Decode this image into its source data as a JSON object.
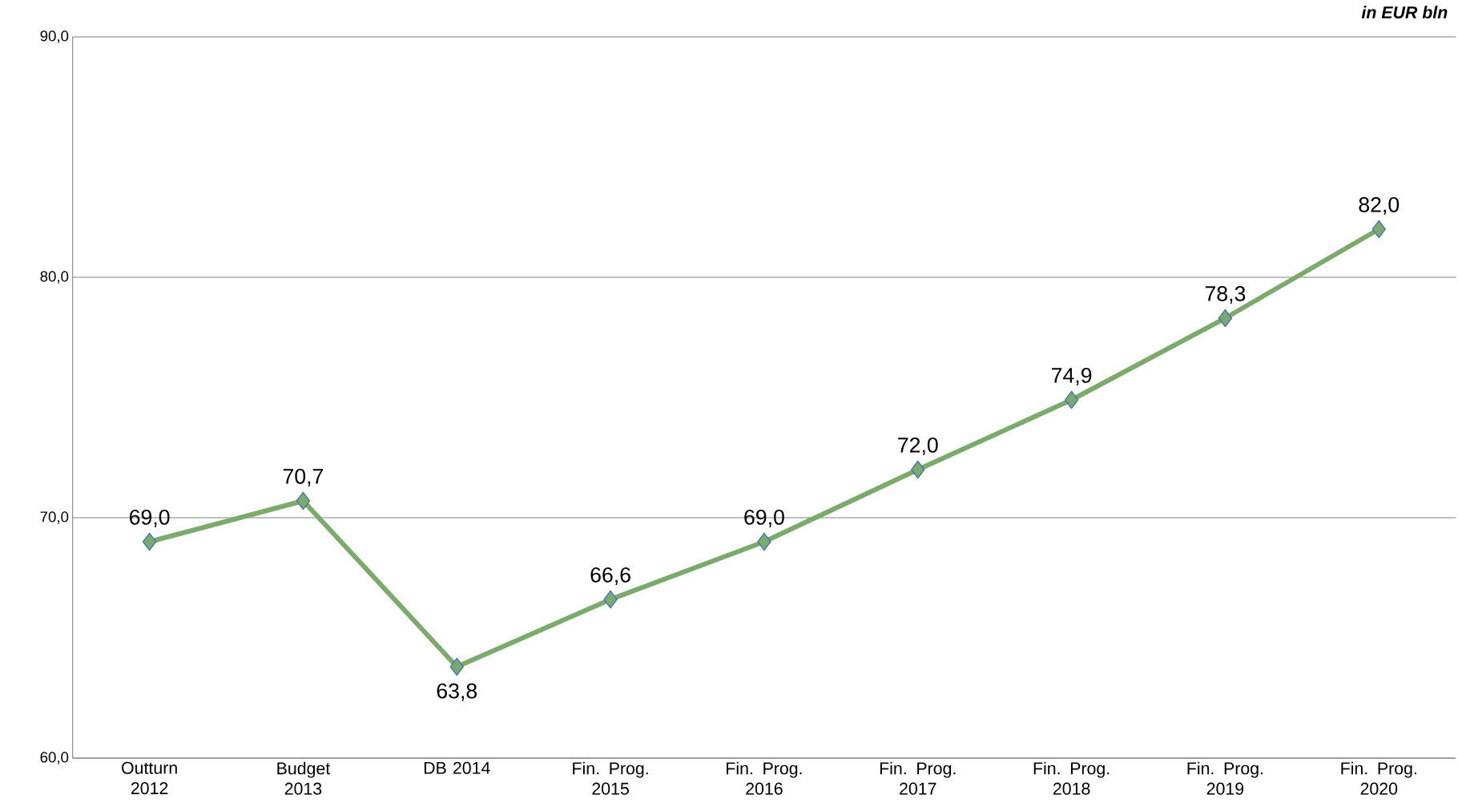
{
  "chart_data": {
    "type": "line",
    "categories": [
      "Outturn 2012",
      "Budget 2013",
      "DB 2014",
      "Fin. Prog. 2015",
      "Fin. Prog. 2016",
      "Fin. Prog. 2017",
      "Fin. Prog. 2018",
      "Fin. Prog. 2019",
      "Fin. Prog. 2020"
    ],
    "series": [
      {
        "color": "#7aab6a",
        "values": [
          69.0,
          70.7,
          63.8,
          66.6,
          69.0,
          72.0,
          74.9,
          78.3,
          82.0
        ],
        "value_labels": [
          "69,0",
          "70,7",
          "63,8",
          "66,6",
          "69,0",
          "72,0",
          "74,9",
          "78,3",
          "82,0"
        ]
      }
    ],
    "ylim": [
      60,
      90
    ],
    "yticks": [
      {
        "value": 60,
        "label": "60,0"
      },
      {
        "value": 70,
        "label": "70,0"
      },
      {
        "value": 80,
        "label": "80,0"
      },
      {
        "value": 90,
        "label": "90,0"
      }
    ],
    "grid": "y",
    "marker": "diamond",
    "line_style": "solid",
    "annotations": [
      "in EUR bln"
    ]
  }
}
